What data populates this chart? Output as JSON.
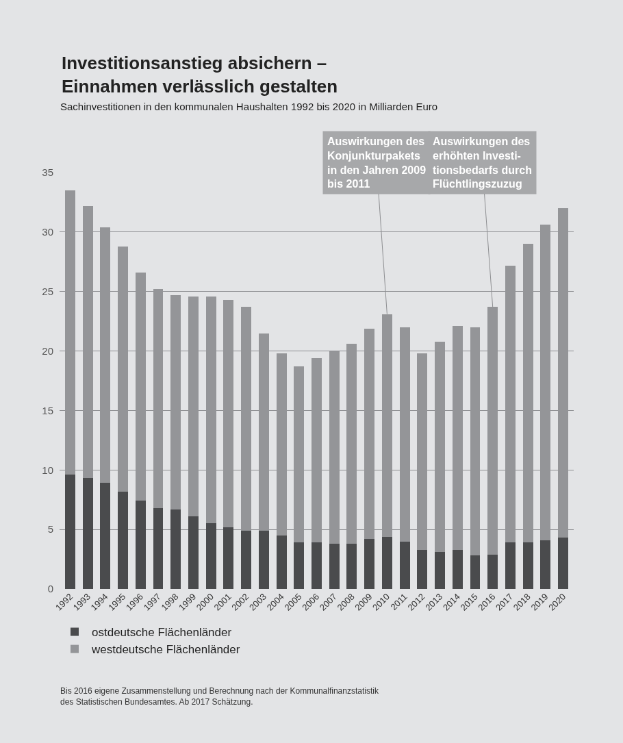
{
  "chart_data": {
    "type": "bar",
    "stacked": true,
    "title": "Investitionsanstieg absichern –\nEinnahmen verlässlich gestalten",
    "subtitle": "Sachinvestitionen in den kommunalen Haushalten 1992 bis 2020 in Milliarden Euro",
    "categories": [
      "1992",
      "1993",
      "1994",
      "1995",
      "1996",
      "1997",
      "1998",
      "1999",
      "2000",
      "2001",
      "2002",
      "2003",
      "2004",
      "2005",
      "2006",
      "2007",
      "2008",
      "2009",
      "2010",
      "2011",
      "2012",
      "2013",
      "2014",
      "2015",
      "2016",
      "2017",
      "2018",
      "2019",
      "2020"
    ],
    "series": [
      {
        "name": "ostdeutsche Flächenländer",
        "color": "#4a4b4d",
        "values": [
          9.6,
          9.3,
          8.9,
          8.2,
          7.4,
          6.8,
          6.7,
          6.1,
          5.5,
          5.2,
          4.9,
          4.9,
          4.5,
          3.9,
          3.9,
          3.8,
          3.8,
          4.2,
          4.4,
          4.0,
          3.3,
          3.1,
          3.3,
          2.8,
          2.9,
          3.9,
          3.9,
          4.1,
          4.3
        ]
      },
      {
        "name": "westdeutsche Flächenländer",
        "color": "#949598",
        "values": [
          23.9,
          22.9,
          21.5,
          20.6,
          19.2,
          18.4,
          18.0,
          18.5,
          19.1,
          19.1,
          18.8,
          16.6,
          15.3,
          14.8,
          15.5,
          16.2,
          16.8,
          17.7,
          18.7,
          18.0,
          16.5,
          17.7,
          18.8,
          19.2,
          20.8,
          23.3,
          25.1,
          26.5,
          27.7
        ]
      }
    ],
    "ylim": [
      0,
      35
    ],
    "yticks": [
      0,
      5,
      10,
      15,
      20,
      25,
      30,
      35
    ],
    "grid": "y",
    "legend": "bottom left",
    "annotations": [
      {
        "text": "Auswirkungen des\nKonjunkturpakets\nin den Jahren 2009\nbis 2011",
        "x": "2010",
        "y": 23.1
      },
      {
        "text": "Auswirkungen des\nerhöhten Investi-\ntionsbedarfs durch\nFlüchtlingszuzug",
        "x": "2016",
        "y": 23.7
      },
      "Bis 2016 eigene Zusammenstellung und Berechnung nach der Kommunalfinanzstatistik\ndes Statistischen Bundesamtes. Ab 2017 Schätzung."
    ]
  }
}
